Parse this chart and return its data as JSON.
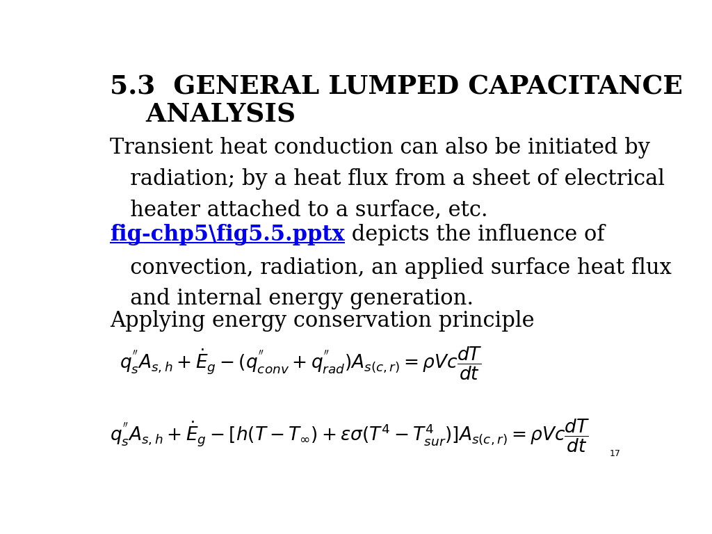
{
  "background_color": "#ffffff",
  "text_color": "#000000",
  "link_color": "#0000EE",
  "title_line1": "5.3  GENERAL LUMPED CAPACITANCE",
  "title_line2": "    ANALYSIS",
  "title_fontsize": 27,
  "body_fontsize": 22,
  "eq_fontsize": 19,
  "slide_number": "17",
  "p1": "Transient heat conduction can also be initiated by\n   radiation; by a heat flux from a sheet of electrical\n   heater attached to a surface, etc.",
  "p2_link": "fig-chp5\\fig5.5.pptx",
  "p2_rest_line1": " depicts the influence of",
  "p2_rest_lines": "   convection, radiation, an applied surface heat flux\n   and internal energy generation.",
  "p3": "Applying energy conservation principle",
  "eq1": "$q_s^{''}A_{s,h} + \\dot{E}_g - (q_{conv}^{''} + q_{rad}^{''})A_{s(c,r)} = \\rho Vc\\dfrac{dT}{dt}$",
  "eq2": "$q_s^{''}A_{s,h} + \\dot{E}_g - [h(T-T_\\infty) + \\varepsilon\\sigma(T^4 - T_{sur}^4)]A_{s(c,r)} = \\rho Vc\\dfrac{dT}{dt}$"
}
